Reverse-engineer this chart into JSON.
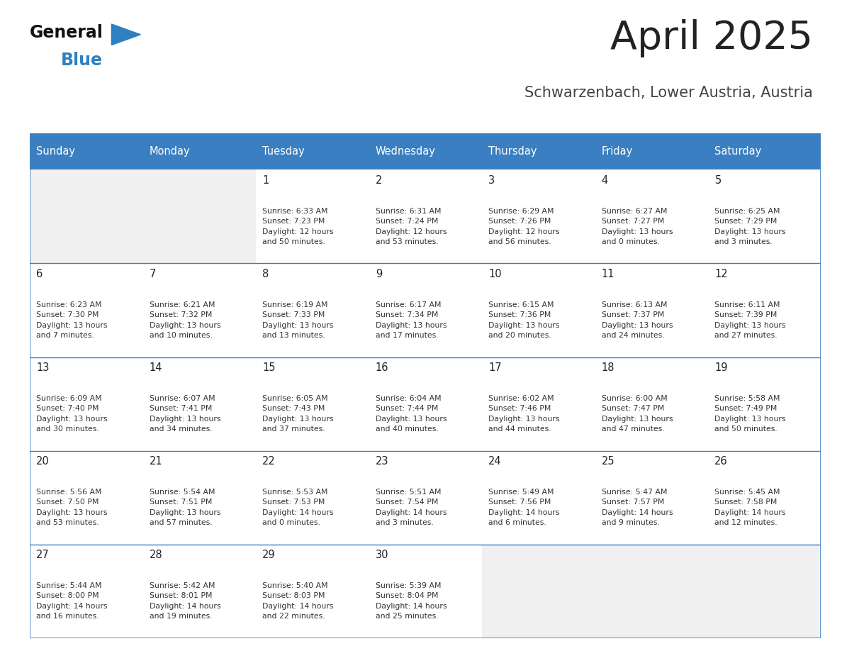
{
  "title": "April 2025",
  "subtitle": "Schwarzenbach, Lower Austria, Austria",
  "header_color": "#3a7fc1",
  "header_text_color": "#ffffff",
  "day_names": [
    "Sunday",
    "Monday",
    "Tuesday",
    "Wednesday",
    "Thursday",
    "Friday",
    "Saturday"
  ],
  "cell_bg_color": "#f0f0f0",
  "cell_content_bg_color": "#ffffff",
  "border_color": "#3a7fc1",
  "day_number_color": "#222222",
  "info_text_color": "#333333",
  "title_color": "#222222",
  "subtitle_color": "#444444",
  "calendar": [
    [
      {
        "day": 0,
        "info": ""
      },
      {
        "day": 0,
        "info": ""
      },
      {
        "day": 1,
        "info": "Sunrise: 6:33 AM\nSunset: 7:23 PM\nDaylight: 12 hours\nand 50 minutes."
      },
      {
        "day": 2,
        "info": "Sunrise: 6:31 AM\nSunset: 7:24 PM\nDaylight: 12 hours\nand 53 minutes."
      },
      {
        "day": 3,
        "info": "Sunrise: 6:29 AM\nSunset: 7:26 PM\nDaylight: 12 hours\nand 56 minutes."
      },
      {
        "day": 4,
        "info": "Sunrise: 6:27 AM\nSunset: 7:27 PM\nDaylight: 13 hours\nand 0 minutes."
      },
      {
        "day": 5,
        "info": "Sunrise: 6:25 AM\nSunset: 7:29 PM\nDaylight: 13 hours\nand 3 minutes."
      }
    ],
    [
      {
        "day": 6,
        "info": "Sunrise: 6:23 AM\nSunset: 7:30 PM\nDaylight: 13 hours\nand 7 minutes."
      },
      {
        "day": 7,
        "info": "Sunrise: 6:21 AM\nSunset: 7:32 PM\nDaylight: 13 hours\nand 10 minutes."
      },
      {
        "day": 8,
        "info": "Sunrise: 6:19 AM\nSunset: 7:33 PM\nDaylight: 13 hours\nand 13 minutes."
      },
      {
        "day": 9,
        "info": "Sunrise: 6:17 AM\nSunset: 7:34 PM\nDaylight: 13 hours\nand 17 minutes."
      },
      {
        "day": 10,
        "info": "Sunrise: 6:15 AM\nSunset: 7:36 PM\nDaylight: 13 hours\nand 20 minutes."
      },
      {
        "day": 11,
        "info": "Sunrise: 6:13 AM\nSunset: 7:37 PM\nDaylight: 13 hours\nand 24 minutes."
      },
      {
        "day": 12,
        "info": "Sunrise: 6:11 AM\nSunset: 7:39 PM\nDaylight: 13 hours\nand 27 minutes."
      }
    ],
    [
      {
        "day": 13,
        "info": "Sunrise: 6:09 AM\nSunset: 7:40 PM\nDaylight: 13 hours\nand 30 minutes."
      },
      {
        "day": 14,
        "info": "Sunrise: 6:07 AM\nSunset: 7:41 PM\nDaylight: 13 hours\nand 34 minutes."
      },
      {
        "day": 15,
        "info": "Sunrise: 6:05 AM\nSunset: 7:43 PM\nDaylight: 13 hours\nand 37 minutes."
      },
      {
        "day": 16,
        "info": "Sunrise: 6:04 AM\nSunset: 7:44 PM\nDaylight: 13 hours\nand 40 minutes."
      },
      {
        "day": 17,
        "info": "Sunrise: 6:02 AM\nSunset: 7:46 PM\nDaylight: 13 hours\nand 44 minutes."
      },
      {
        "day": 18,
        "info": "Sunrise: 6:00 AM\nSunset: 7:47 PM\nDaylight: 13 hours\nand 47 minutes."
      },
      {
        "day": 19,
        "info": "Sunrise: 5:58 AM\nSunset: 7:49 PM\nDaylight: 13 hours\nand 50 minutes."
      }
    ],
    [
      {
        "day": 20,
        "info": "Sunrise: 5:56 AM\nSunset: 7:50 PM\nDaylight: 13 hours\nand 53 minutes."
      },
      {
        "day": 21,
        "info": "Sunrise: 5:54 AM\nSunset: 7:51 PM\nDaylight: 13 hours\nand 57 minutes."
      },
      {
        "day": 22,
        "info": "Sunrise: 5:53 AM\nSunset: 7:53 PM\nDaylight: 14 hours\nand 0 minutes."
      },
      {
        "day": 23,
        "info": "Sunrise: 5:51 AM\nSunset: 7:54 PM\nDaylight: 14 hours\nand 3 minutes."
      },
      {
        "day": 24,
        "info": "Sunrise: 5:49 AM\nSunset: 7:56 PM\nDaylight: 14 hours\nand 6 minutes."
      },
      {
        "day": 25,
        "info": "Sunrise: 5:47 AM\nSunset: 7:57 PM\nDaylight: 14 hours\nand 9 minutes."
      },
      {
        "day": 26,
        "info": "Sunrise: 5:45 AM\nSunset: 7:58 PM\nDaylight: 14 hours\nand 12 minutes."
      }
    ],
    [
      {
        "day": 27,
        "info": "Sunrise: 5:44 AM\nSunset: 8:00 PM\nDaylight: 14 hours\nand 16 minutes."
      },
      {
        "day": 28,
        "info": "Sunrise: 5:42 AM\nSunset: 8:01 PM\nDaylight: 14 hours\nand 19 minutes."
      },
      {
        "day": 29,
        "info": "Sunrise: 5:40 AM\nSunset: 8:03 PM\nDaylight: 14 hours\nand 22 minutes."
      },
      {
        "day": 30,
        "info": "Sunrise: 5:39 AM\nSunset: 8:04 PM\nDaylight: 14 hours\nand 25 minutes."
      },
      {
        "day": 0,
        "info": ""
      },
      {
        "day": 0,
        "info": ""
      },
      {
        "day": 0,
        "info": ""
      }
    ]
  ],
  "logo_color_black": "#111111",
  "logo_color_blue": "#2e80c0",
  "logo_triangle_color": "#2e80c0"
}
